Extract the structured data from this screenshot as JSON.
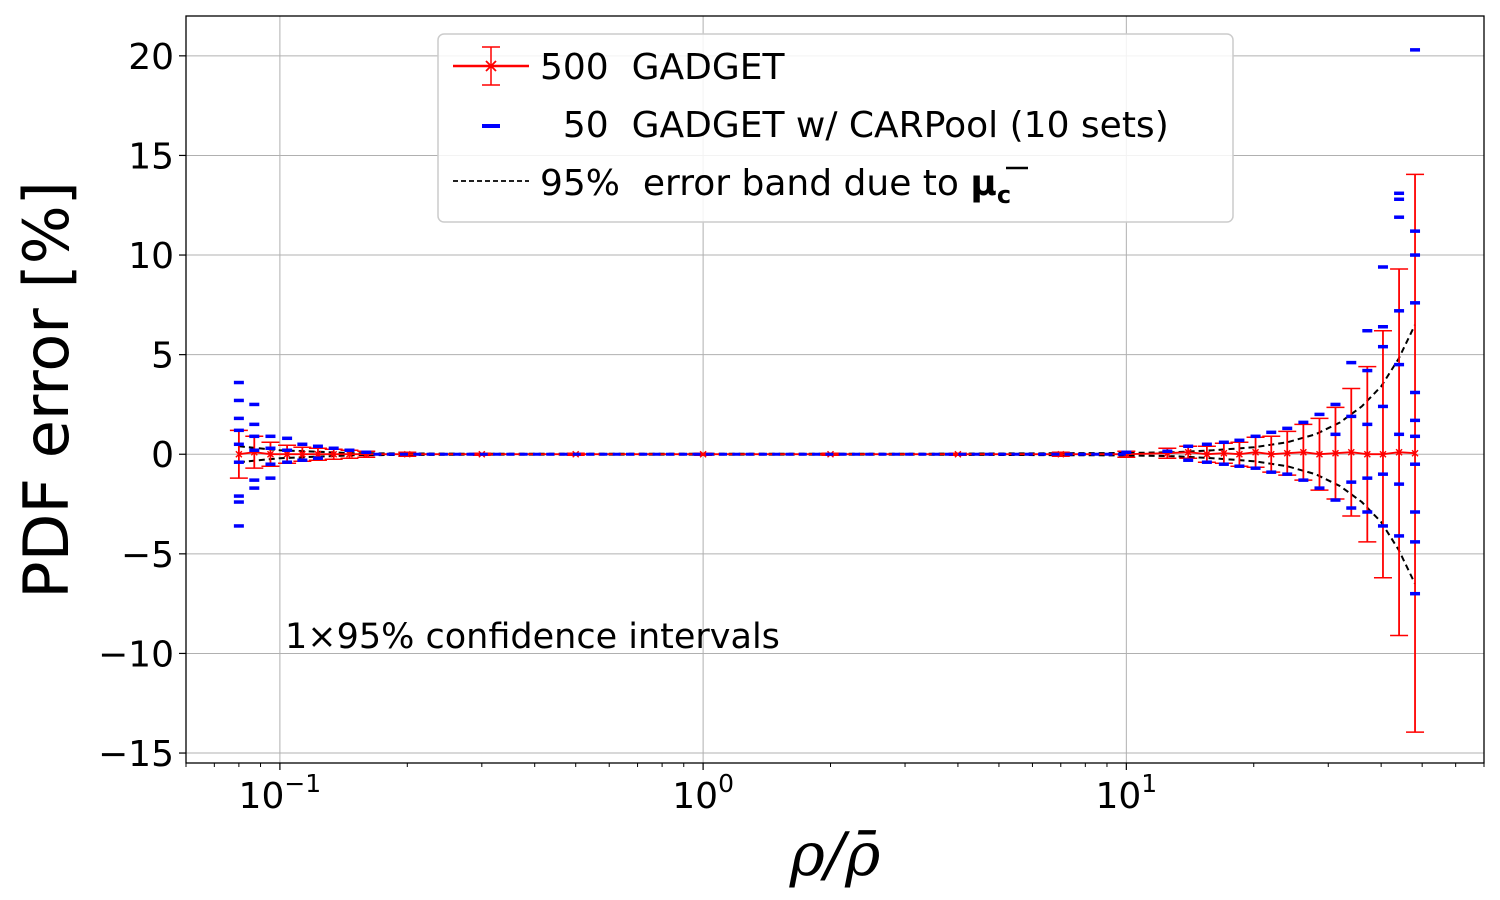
{
  "chart_data": {
    "type": "scatter",
    "title": "",
    "xlabel": "ρ/ρ̄",
    "ylabel": "PDF error  [%]",
    "xscale": "log",
    "xlim": [
      0.06,
      70
    ],
    "ylim": [
      -15.5,
      22
    ],
    "grid": true,
    "x_tick_labels": [
      {
        "base": "10",
        "exp": "−1",
        "value": 0.1
      },
      {
        "base": "10",
        "exp": "0",
        "value": 1
      },
      {
        "base": "10",
        "exp": "1",
        "value": 10
      }
    ],
    "y_ticks": [
      -15,
      -10,
      -5,
      0,
      5,
      10,
      15,
      20
    ],
    "y_tick_labels": [
      "−15",
      "−10",
      "−5",
      "0",
      "5",
      "10",
      "15",
      "20"
    ],
    "legend": {
      "placement": "top-center",
      "entries": [
        {
          "label": "500  GADGET",
          "color": "#ff0000",
          "marker": "x with error bars"
        },
        {
          "label": "  50  GADGET w/ CARPool (10 sets)",
          "color": "#0000ff",
          "marker": "dash"
        },
        {
          "label_prefix": "95%  error band due to ",
          "label_symbol": "μ",
          "label_subscript": "c",
          "color": "#000000",
          "marker": "dashed line"
        }
      ]
    },
    "annotation": "1×95% confidence intervals",
    "series": [
      {
        "name": "500  GADGET",
        "color": "#ff0000",
        "x": [
          0.08,
          0.087,
          0.095,
          0.104,
          0.113,
          0.123,
          0.134,
          0.146,
          0.16,
          0.2,
          0.3,
          0.5,
          1.0,
          2.0,
          4.0,
          7.0,
          10.0,
          12.5,
          14.0,
          15.5,
          17.0,
          18.5,
          20.2,
          22.0,
          24.0,
          26.2,
          28.6,
          31.2,
          34.0,
          37.1,
          40.4,
          44.1,
          48.1
        ],
        "y": [
          0.0,
          0.1,
          0.0,
          0.0,
          0.0,
          0.0,
          0.0,
          0.0,
          0.0,
          0.0,
          0.0,
          0.0,
          0.0,
          0.0,
          0.0,
          0.0,
          0.0,
          0.05,
          0.1,
          0.0,
          0.05,
          0.0,
          0.1,
          0.0,
          0.05,
          0.1,
          0.0,
          0.05,
          0.1,
          0.0,
          0.0,
          0.1,
          0.05
        ],
        "err": [
          1.2,
          0.8,
          0.6,
          0.45,
          0.35,
          0.3,
          0.25,
          0.2,
          0.15,
          0.1,
          0.05,
          0.05,
          0.05,
          0.05,
          0.05,
          0.1,
          0.15,
          0.25,
          0.3,
          0.4,
          0.5,
          0.6,
          0.75,
          0.9,
          1.1,
          1.4,
          1.8,
          2.3,
          3.2,
          4.4,
          6.2,
          9.2,
          14.0
        ]
      },
      {
        "name": "  50  GADGET w/ CARPool (10 sets)",
        "color": "#0000ff",
        "x": [
          0.08,
          0.08,
          0.08,
          0.08,
          0.08,
          0.08,
          0.08,
          0.08,
          0.08,
          0.087,
          0.087,
          0.087,
          0.087,
          0.087,
          0.087,
          0.095,
          0.095,
          0.095,
          0.095,
          0.104,
          0.104,
          0.104,
          0.113,
          0.113,
          0.123,
          0.123,
          0.134,
          0.146,
          0.16,
          10.0,
          12.5,
          14.0,
          14.0,
          15.5,
          15.5,
          17.0,
          17.0,
          18.5,
          18.5,
          20.2,
          20.2,
          22.0,
          22.0,
          24.0,
          24.0,
          26.2,
          26.2,
          28.6,
          28.6,
          31.2,
          31.2,
          31.2,
          34.0,
          34.0,
          34.0,
          34.0,
          37.1,
          37.1,
          37.1,
          37.1,
          37.1,
          40.4,
          40.4,
          40.4,
          40.4,
          40.4,
          40.4,
          44.1,
          44.1,
          44.1,
          44.1,
          44.1,
          44.1,
          44.1,
          44.1,
          48.1,
          48.1,
          48.1,
          48.1,
          48.1,
          48.1,
          48.1,
          48.1,
          48.1,
          48.1,
          48.1
        ],
        "y": [
          3.6,
          2.7,
          1.8,
          1.2,
          0.5,
          -0.4,
          -2.1,
          -2.4,
          -3.6,
          2.5,
          1.5,
          0.9,
          0.2,
          -1.3,
          -1.7,
          0.9,
          0.3,
          -0.5,
          -1.2,
          0.8,
          0.2,
          -0.4,
          0.5,
          -0.3,
          0.4,
          -0.2,
          0.3,
          0.2,
          0.1,
          0.1,
          0.15,
          0.4,
          -0.3,
          0.5,
          -0.4,
          0.6,
          -0.5,
          0.7,
          -0.6,
          0.9,
          -0.7,
          1.1,
          -0.9,
          1.3,
          -1.0,
          1.6,
          -1.3,
          2.0,
          -1.7,
          2.5,
          1.0,
          -2.3,
          4.6,
          1.9,
          -1.4,
          -2.7,
          6.2,
          4.2,
          1.5,
          -1.2,
          -2.9,
          9.4,
          6.4,
          5.4,
          2.4,
          -1.0,
          -3.6,
          13.1,
          12.8,
          11.9,
          7.2,
          4.5,
          1.0,
          -1.5,
          -4.1,
          20.3,
          11.2,
          10.0,
          7.6,
          3.1,
          1.7,
          0.9,
          -0.5,
          -2.9,
          -4.4,
          -7.0
        ]
      },
      {
        "name": "95%  error band upper",
        "color": "#000000",
        "x": [
          0.08,
          0.1,
          0.15,
          0.3,
          1.0,
          3.0,
          10.0,
          13.0,
          16.0,
          20.0,
          24.0,
          28.0,
          32.0,
          36.0,
          40.0,
          44.0,
          48.1
        ],
        "y": [
          0.4,
          0.2,
          0.05,
          0.02,
          0.02,
          0.02,
          0.06,
          0.1,
          0.2,
          0.35,
          0.6,
          1.0,
          1.6,
          2.4,
          3.4,
          4.8,
          6.5
        ]
      },
      {
        "name": "95%  error band lower",
        "color": "#000000",
        "x": [
          0.08,
          0.1,
          0.15,
          0.3,
          1.0,
          3.0,
          10.0,
          13.0,
          16.0,
          20.0,
          24.0,
          28.0,
          32.0,
          36.0,
          40.0,
          44.0,
          48.1
        ],
        "y": [
          -0.4,
          -0.2,
          -0.05,
          -0.02,
          -0.02,
          -0.02,
          -0.06,
          -0.1,
          -0.2,
          -0.35,
          -0.6,
          -1.0,
          -1.6,
          -2.4,
          -3.4,
          -4.8,
          -6.5
        ]
      }
    ]
  }
}
